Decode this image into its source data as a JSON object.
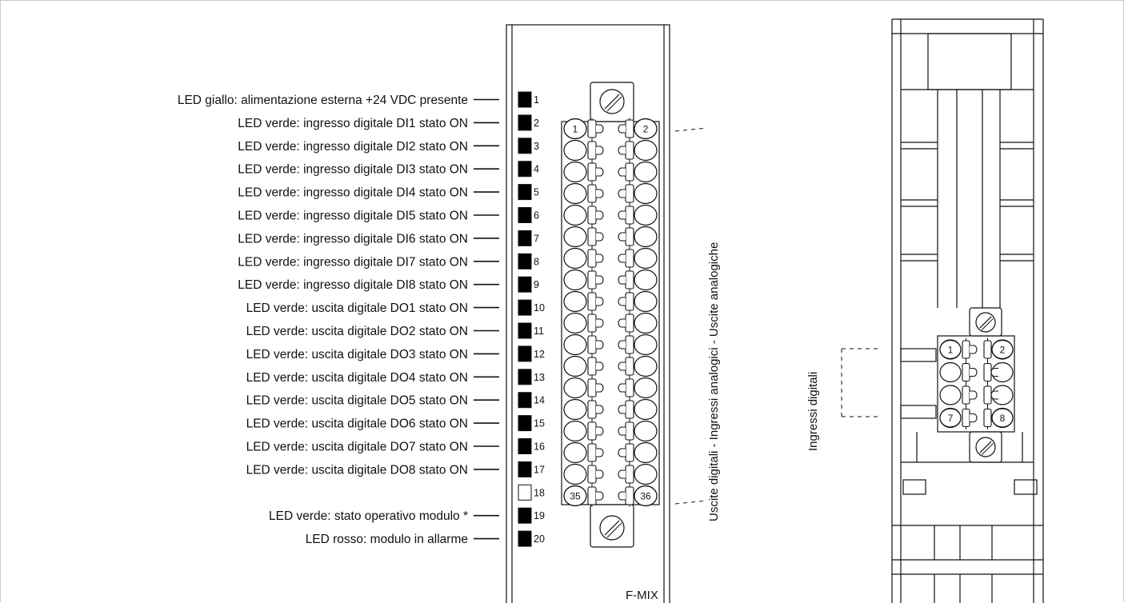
{
  "led_labels": [
    "LED giallo: alimentazione esterna +24 VDC presente",
    "LED verde: ingresso digitale DI1 stato ON",
    "LED verde: ingresso digitale DI2 stato ON",
    "LED verde: ingresso digitale DI3 stato ON",
    "LED verde: ingresso digitale DI4 stato ON",
    "LED verde: ingresso digitale DI5 stato ON",
    "LED verde: ingresso digitale DI6 stato ON",
    "LED verde: ingresso digitale DI7 stato ON",
    "LED verde: ingresso digitale DI8 stato ON",
    "LED verde: uscita digitale DO1 stato ON",
    "LED verde: uscita digitale DO2 stato ON",
    "LED verde: uscita digitale DO3 stato ON",
    "LED verde: uscita digitale DO4 stato ON",
    "LED verde: uscita digitale DO5 stato ON",
    "LED verde: uscita digitale DO6 stato ON",
    "LED verde: uscita digitale DO7 stato ON",
    "LED verde: uscita digitale DO8 stato ON",
    "",
    "LED verde: stato operativo modulo *",
    "LED rosso: modulo in allarme"
  ],
  "led_numbers": [
    "1",
    "2",
    "3",
    "4",
    "5",
    "6",
    "7",
    "8",
    "9",
    "10",
    "11",
    "12",
    "13",
    "14",
    "15",
    "16",
    "17",
    "18",
    "19",
    "20"
  ],
  "main_terminal_numbers": [
    "1",
    "2",
    "35",
    "36"
  ],
  "side_terminal_numbers": [
    "1",
    "2",
    "7",
    "8"
  ],
  "main_block_label": "Uscite digitali - Ingressi analogici - Uscite analogiche",
  "side_block_label": "Ingressi digitali",
  "module_name": "F-MIX",
  "colors": {
    "led_on": "#000000",
    "line": "#111111",
    "frame": "#c9c9c9"
  }
}
